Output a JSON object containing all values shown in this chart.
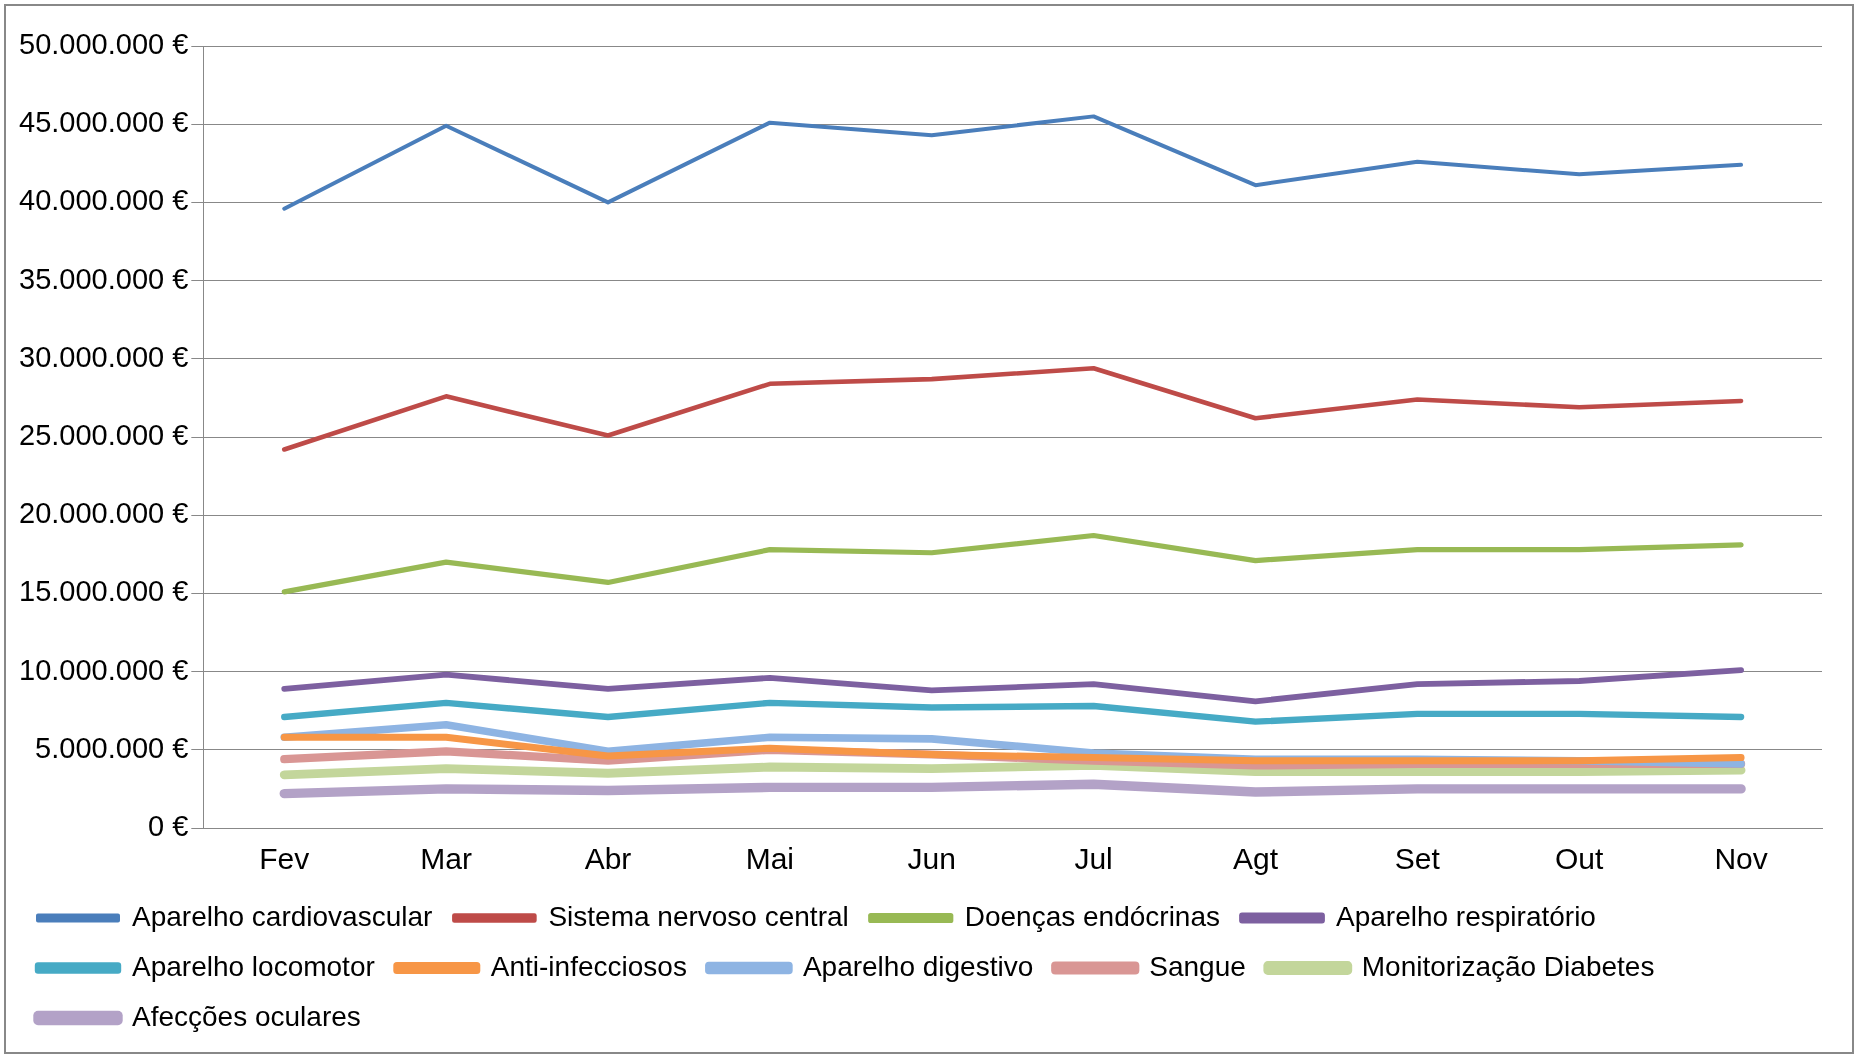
{
  "chart_data": {
    "type": "line",
    "categories": [
      "Fev",
      "Mar",
      "Abr",
      "Mai",
      "Jun",
      "Jul",
      "Agt",
      "Set",
      "Out",
      "Nov"
    ],
    "series": [
      {
        "name": "Aparelho cardiovascular",
        "color": "#4a7ebb",
        "values": [
          39600000,
          44900000,
          40000000,
          45100000,
          44300000,
          45500000,
          41100000,
          42600000,
          41800000,
          42400000
        ]
      },
      {
        "name": "Sistema nervoso central",
        "color": "#be4b48",
        "values": [
          24200000,
          27600000,
          25100000,
          28400000,
          28700000,
          29400000,
          26200000,
          27400000,
          26900000,
          27300000
        ]
      },
      {
        "name": "Doenças endócrinas",
        "color": "#98b954",
        "values": [
          15100000,
          17000000,
          15700000,
          17800000,
          17600000,
          18700000,
          17100000,
          17800000,
          17800000,
          18100000
        ]
      },
      {
        "name": "Aparelho respiratório",
        "color": "#7d60a0",
        "values": [
          8900000,
          9800000,
          8900000,
          9600000,
          8800000,
          9200000,
          8100000,
          9200000,
          9400000,
          10100000
        ]
      },
      {
        "name": "Aparelho locomotor",
        "color": "#46aac5",
        "values": [
          7100000,
          8000000,
          7100000,
          8000000,
          7700000,
          7800000,
          6800000,
          7300000,
          7300000,
          7100000
        ]
      },
      {
        "name": "Anti-infecciosos",
        "color": "#f79646",
        "values": [
          5800000,
          5800000,
          4600000,
          5100000,
          4700000,
          4500000,
          4300000,
          4300000,
          4300000,
          4500000
        ]
      },
      {
        "name": "Aparelho digestivo",
        "color": "#8eb4e3",
        "values": [
          5800000,
          6600000,
          4900000,
          5800000,
          5700000,
          4800000,
          4400000,
          4400000,
          4300000,
          4100000
        ]
      },
      {
        "name": "Sangue",
        "color": "#d99694",
        "values": [
          4400000,
          4900000,
          4300000,
          5000000,
          4700000,
          4300000,
          4000000,
          4100000,
          4100000,
          4100000
        ]
      },
      {
        "name": "Monitorização Diabetes",
        "color": "#c3d69b",
        "values": [
          3400000,
          3800000,
          3500000,
          3900000,
          3800000,
          4000000,
          3600000,
          3600000,
          3600000,
          3700000
        ]
      },
      {
        "name": "Afecções oculares",
        "color": "#b3a2c7",
        "values": [
          2200000,
          2500000,
          2400000,
          2600000,
          2600000,
          2800000,
          2300000,
          2500000,
          2500000,
          2500000
        ]
      }
    ],
    "ylim": [
      0,
      50000000
    ],
    "yticks": [
      {
        "value": 0,
        "label": "0 €"
      },
      {
        "value": 5000000,
        "label": "5.000.000 €"
      },
      {
        "value": 10000000,
        "label": "10.000.000 €"
      },
      {
        "value": 15000000,
        "label": "15.000.000 €"
      },
      {
        "value": 20000000,
        "label": "20.000.000 €"
      },
      {
        "value": 25000000,
        "label": "25.000.000 €"
      },
      {
        "value": 30000000,
        "label": "30.000.000 €"
      },
      {
        "value": 35000000,
        "label": "35.000.000 €"
      },
      {
        "value": 40000000,
        "label": "40.000.000 €"
      },
      {
        "value": 45000000,
        "label": "45.000.000 €"
      },
      {
        "value": 50000000,
        "label": "50.000.000 €"
      }
    ],
    "grid": "y",
    "legend": "bottom",
    "marker": "none",
    "line_style": "solid"
  }
}
